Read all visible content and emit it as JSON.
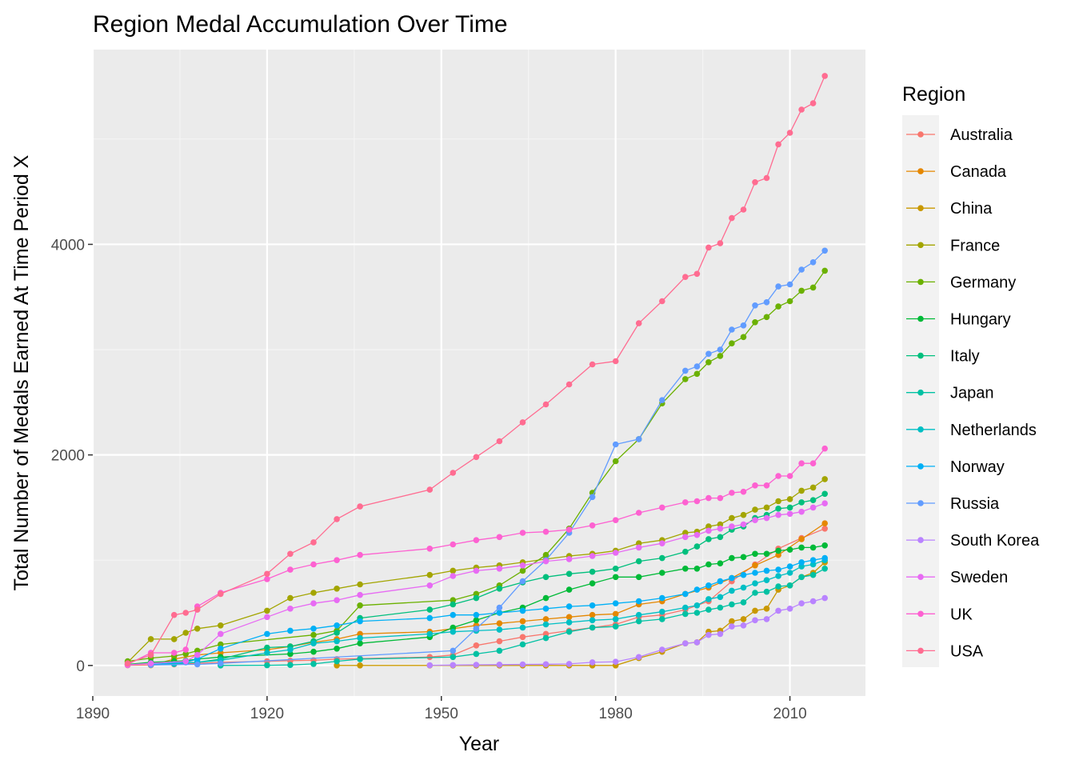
{
  "chart_data": {
    "type": "line",
    "title": "Region Medal Accumulation Over Time",
    "xlabel": "Year",
    "ylabel": "Total Number of Medals Earned At Time Period X",
    "xlim": [
      1890,
      2023
    ],
    "ylim": [
      -290,
      5850
    ],
    "x_ticks": [
      1890,
      1920,
      1950,
      1980,
      2010
    ],
    "y_ticks": [
      0,
      2000,
      4000
    ],
    "grid": true,
    "markers": true,
    "legend": {
      "title": "Region",
      "position": "right"
    },
    "series": [
      {
        "name": "Australia",
        "color": "#F8766D",
        "x": [
          1896,
          1900,
          1904,
          1908,
          1912,
          1920,
          1924,
          1928,
          1932,
          1936,
          1948,
          1952,
          1956,
          1960,
          1964,
          1968,
          1972,
          1976,
          1980,
          1984,
          1988,
          1992,
          1996,
          2000,
          2004,
          2008,
          2012,
          2016
        ],
        "values": [
          2,
          5,
          10,
          20,
          30,
          40,
          45,
          50,
          60,
          65,
          80,
          100,
          190,
          230,
          270,
          300,
          330,
          360,
          390,
          460,
          480,
          530,
          610,
          800,
          960,
          1110,
          1210,
          1300
        ]
      },
      {
        "name": "Canada",
        "color": "#E58700",
        "x": [
          1900,
          1904,
          1908,
          1912,
          1920,
          1924,
          1928,
          1932,
          1936,
          1948,
          1952,
          1956,
          1960,
          1964,
          1968,
          1972,
          1976,
          1980,
          1984,
          1988,
          1992,
          1996,
          2000,
          2004,
          2008,
          2012,
          2016
        ],
        "values": [
          2,
          60,
          100,
          120,
          150,
          180,
          220,
          250,
          300,
          320,
          350,
          380,
          400,
          420,
          440,
          460,
          480,
          490,
          580,
          610,
          680,
          740,
          830,
          950,
          1050,
          1200,
          1350
        ]
      },
      {
        "name": "China",
        "color": "#C99800",
        "x": [
          1932,
          1936,
          1948,
          1952,
          1956,
          1960,
          1964,
          1968,
          1972,
          1976,
          1980,
          1984,
          1988,
          1992,
          1994,
          1996,
          1998,
          2000,
          2002,
          2004,
          2006,
          2008,
          2010,
          2012,
          2014,
          2016
        ],
        "values": [
          0,
          0,
          0,
          0,
          0,
          0,
          0,
          0,
          0,
          0,
          0,
          70,
          130,
          210,
          220,
          320,
          330,
          420,
          440,
          520,
          540,
          720,
          760,
          840,
          880,
          980
        ]
      },
      {
        "name": "France",
        "color": "#A3A500",
        "x": [
          1896,
          1900,
          1904,
          1906,
          1908,
          1912,
          1920,
          1924,
          1928,
          1932,
          1936,
          1948,
          1952,
          1956,
          1960,
          1964,
          1968,
          1972,
          1976,
          1980,
          1984,
          1988,
          1992,
          1994,
          1996,
          1998,
          2000,
          2002,
          2004,
          2006,
          2008,
          2010,
          2012,
          2014,
          2016
        ],
        "values": [
          30,
          250,
          250,
          310,
          350,
          380,
          520,
          640,
          690,
          730,
          770,
          860,
          900,
          930,
          950,
          980,
          1010,
          1040,
          1060,
          1090,
          1160,
          1190,
          1260,
          1270,
          1320,
          1340,
          1400,
          1430,
          1480,
          1500,
          1560,
          1580,
          1660,
          1690,
          1770
        ]
      },
      {
        "name": "Germany",
        "color": "#6BB100",
        "x": [
          1896,
          1900,
          1904,
          1906,
          1908,
          1912,
          1928,
          1932,
          1936,
          1952,
          1956,
          1960,
          1964,
          1968,
          1972,
          1976,
          1980,
          1984,
          1988,
          1992,
          1994,
          1996,
          1998,
          2000,
          2002,
          2004,
          2006,
          2008,
          2010,
          2012,
          2014,
          2016
        ],
        "values": [
          40,
          70,
          90,
          110,
          140,
          200,
          290,
          330,
          570,
          620,
          680,
          760,
          900,
          1050,
          1300,
          1640,
          1940,
          2150,
          2490,
          2720,
          2770,
          2880,
          2940,
          3060,
          3120,
          3260,
          3310,
          3410,
          3460,
          3560,
          3590,
          3750
        ]
      },
      {
        "name": "Hungary",
        "color": "#00BA38",
        "x": [
          1896,
          1900,
          1904,
          1906,
          1908,
          1912,
          1924,
          1928,
          1932,
          1936,
          1948,
          1952,
          1956,
          1960,
          1964,
          1968,
          1972,
          1976,
          1980,
          1984,
          1988,
          1992,
          1994,
          1996,
          1998,
          2000,
          2002,
          2004,
          2006,
          2008,
          2010,
          2012,
          2014,
          2016
        ],
        "values": [
          10,
          30,
          40,
          45,
          60,
          80,
          110,
          130,
          160,
          210,
          270,
          360,
          430,
          500,
          550,
          640,
          720,
          780,
          840,
          840,
          880,
          920,
          920,
          960,
          970,
          1020,
          1030,
          1060,
          1060,
          1090,
          1100,
          1120,
          1120,
          1140
        ]
      },
      {
        "name": "Italy",
        "color": "#00BF7D",
        "x": [
          1900,
          1908,
          1912,
          1920,
          1924,
          1928,
          1932,
          1936,
          1948,
          1952,
          1956,
          1960,
          1964,
          1968,
          1972,
          1976,
          1980,
          1984,
          1988,
          1992,
          1994,
          1996,
          1998,
          2000,
          2002,
          2004,
          2006,
          2008,
          2010,
          2012,
          2014,
          2016
        ],
        "values": [
          10,
          30,
          60,
          170,
          180,
          230,
          310,
          450,
          530,
          580,
          640,
          730,
          790,
          840,
          870,
          890,
          920,
          990,
          1020,
          1080,
          1130,
          1200,
          1220,
          1290,
          1320,
          1400,
          1430,
          1490,
          1500,
          1550,
          1570,
          1630
        ]
      },
      {
        "name": "Japan",
        "color": "#00C1A3",
        "x": [
          1912,
          1920,
          1924,
          1928,
          1932,
          1936,
          1952,
          1956,
          1960,
          1964,
          1968,
          1972,
          1976,
          1980,
          1984,
          1988,
          1992,
          1994,
          1996,
          1998,
          2000,
          2002,
          2004,
          2006,
          2008,
          2010,
          2012,
          2014,
          2016
        ],
        "values": [
          0,
          2,
          5,
          15,
          40,
          60,
          80,
          110,
          140,
          200,
          260,
          320,
          360,
          370,
          420,
          440,
          490,
          500,
          530,
          550,
          580,
          600,
          690,
          700,
          750,
          760,
          840,
          860,
          920
        ]
      },
      {
        "name": "Netherlands",
        "color": "#00BFC4",
        "x": [
          1900,
          1904,
          1908,
          1912,
          1920,
          1924,
          1928,
          1932,
          1936,
          1948,
          1952,
          1956,
          1960,
          1964,
          1968,
          1972,
          1976,
          1980,
          1984,
          1988,
          1992,
          1994,
          1996,
          1998,
          2000,
          2002,
          2004,
          2006,
          2008,
          2010,
          2012,
          2014,
          2016
        ],
        "values": [
          10,
          15,
          30,
          50,
          120,
          150,
          210,
          230,
          260,
          300,
          320,
          330,
          340,
          360,
          390,
          410,
          430,
          440,
          480,
          510,
          550,
          570,
          630,
          650,
          710,
          740,
          780,
          810,
          850,
          880,
          940,
          960,
          1000
        ]
      },
      {
        "name": "Norway",
        "color": "#00B0F6",
        "x": [
          1900,
          1906,
          1908,
          1912,
          1920,
          1924,
          1928,
          1932,
          1936,
          1948,
          1952,
          1956,
          1960,
          1964,
          1968,
          1972,
          1976,
          1980,
          1984,
          1988,
          1992,
          1994,
          1996,
          1998,
          2000,
          2002,
          2004,
          2006,
          2008,
          2010,
          2012,
          2014,
          2016
        ],
        "values": [
          10,
          30,
          60,
          160,
          300,
          330,
          350,
          380,
          420,
          450,
          480,
          480,
          500,
          520,
          540,
          560,
          570,
          590,
          610,
          640,
          680,
          720,
          760,
          800,
          830,
          860,
          880,
          900,
          910,
          940,
          980,
          1000,
          1020
        ]
      },
      {
        "name": "Russia",
        "color": "#619CFF",
        "x": [
          1900,
          1908,
          1912,
          1952,
          1956,
          1960,
          1964,
          1968,
          1972,
          1976,
          1980,
          1984,
          1988,
          1992,
          1994,
          1996,
          1998,
          2000,
          2002,
          2004,
          2006,
          2008,
          2010,
          2012,
          2014,
          2016
        ],
        "values": [
          5,
          10,
          20,
          140,
          350,
          550,
          800,
          1000,
          1260,
          1600,
          2100,
          2150,
          2520,
          2800,
          2840,
          2960,
          3000,
          3190,
          3230,
          3420,
          3450,
          3600,
          3620,
          3760,
          3830,
          3940
        ]
      },
      {
        "name": "South Korea",
        "color": "#B983FF",
        "x": [
          1948,
          1952,
          1956,
          1960,
          1964,
          1968,
          1972,
          1976,
          1980,
          1984,
          1988,
          1992,
          1994,
          1996,
          1998,
          2000,
          2002,
          2004,
          2006,
          2008,
          2010,
          2012,
          2014,
          2016
        ],
        "values": [
          2,
          4,
          6,
          8,
          10,
          12,
          15,
          30,
          35,
          80,
          150,
          210,
          220,
          290,
          300,
          370,
          380,
          430,
          440,
          520,
          540,
          590,
          610,
          640
        ]
      },
      {
        "name": "Sweden",
        "color": "#E76BF3",
        "x": [
          1896,
          1900,
          1906,
          1908,
          1912,
          1920,
          1924,
          1928,
          1932,
          1936,
          1948,
          1952,
          1956,
          1960,
          1964,
          1968,
          1972,
          1976,
          1980,
          1984,
          1988,
          1992,
          1994,
          1996,
          1998,
          2000,
          2002,
          2004,
          2006,
          2008,
          2010,
          2012,
          2014,
          2016
        ],
        "values": [
          5,
          20,
          40,
          100,
          300,
          460,
          540,
          590,
          620,
          670,
          760,
          850,
          900,
          920,
          950,
          990,
          1010,
          1040,
          1070,
          1120,
          1160,
          1220,
          1240,
          1280,
          1300,
          1320,
          1340,
          1380,
          1400,
          1430,
          1440,
          1460,
          1500,
          1540
        ]
      },
      {
        "name": "UK",
        "color": "#FD61D1",
        "x": [
          1896,
          1900,
          1904,
          1906,
          1908,
          1912,
          1920,
          1924,
          1928,
          1932,
          1936,
          1948,
          1952,
          1956,
          1960,
          1964,
          1968,
          1972,
          1976,
          1980,
          1984,
          1988,
          1992,
          1994,
          1996,
          1998,
          2000,
          2002,
          2004,
          2006,
          2008,
          2010,
          2012,
          2014,
          2016
        ],
        "values": [
          10,
          120,
          120,
          150,
          560,
          690,
          820,
          910,
          960,
          1000,
          1050,
          1110,
          1150,
          1190,
          1220,
          1260,
          1270,
          1290,
          1330,
          1380,
          1450,
          1500,
          1550,
          1560,
          1590,
          1590,
          1640,
          1650,
          1710,
          1710,
          1800,
          1800,
          1920,
          1920,
          2060
        ]
      },
      {
        "name": "USA",
        "color": "#FF6C91",
        "x": [
          1896,
          1900,
          1904,
          1906,
          1908,
          1912,
          1920,
          1924,
          1928,
          1932,
          1936,
          1948,
          1952,
          1956,
          1960,
          1964,
          1968,
          1972,
          1976,
          1980,
          1984,
          1988,
          1992,
          1994,
          1996,
          1998,
          2000,
          2002,
          2004,
          2006,
          2008,
          2010,
          2012,
          2014,
          2016
        ],
        "values": [
          20,
          100,
          480,
          500,
          530,
          680,
          870,
          1060,
          1170,
          1390,
          1510,
          1670,
          1830,
          1980,
          2130,
          2310,
          2480,
          2670,
          2860,
          2890,
          3250,
          3460,
          3690,
          3720,
          3970,
          4010,
          4250,
          4330,
          4590,
          4630,
          4950,
          5060,
          5280,
          5340,
          5600
        ]
      }
    ]
  }
}
